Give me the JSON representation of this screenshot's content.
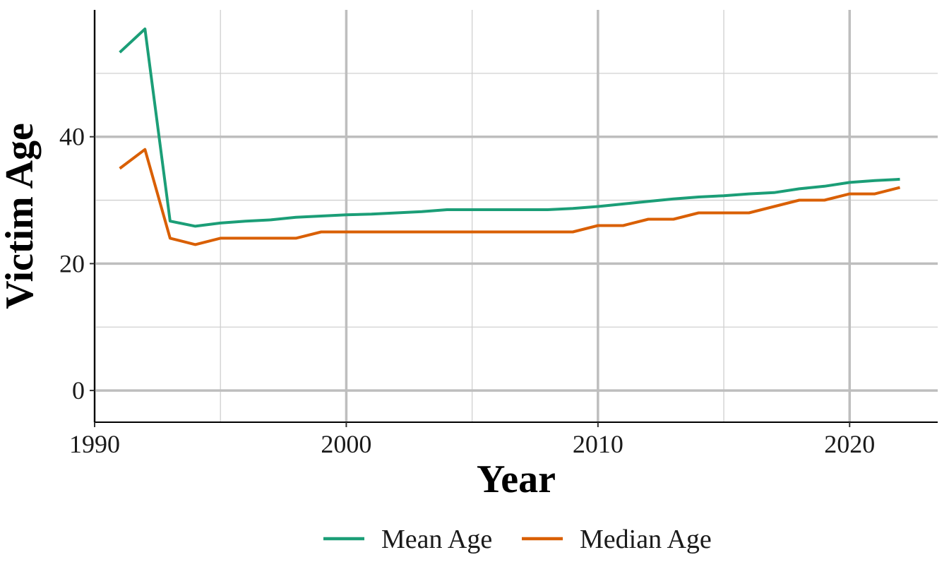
{
  "chart_data": {
    "type": "line",
    "xlabel": "Year",
    "ylabel": "Victim Age",
    "xlim": [
      1990,
      2023.5
    ],
    "ylim": [
      -5,
      60
    ],
    "x_ticks": [
      1990,
      2000,
      2010,
      2020
    ],
    "y_ticks": [
      0,
      20,
      40
    ],
    "x_tick_labels": [
      "1990",
      "2000",
      "2010",
      "2020"
    ],
    "y_tick_labels": [
      "0",
      "20",
      "40"
    ],
    "grid": true,
    "legend_position": "bottom",
    "x": [
      1991,
      1992,
      1993,
      1994,
      1995,
      1996,
      1997,
      1998,
      1999,
      2000,
      2001,
      2002,
      2003,
      2004,
      2005,
      2006,
      2007,
      2008,
      2009,
      2010,
      2011,
      2012,
      2013,
      2014,
      2015,
      2016,
      2017,
      2018,
      2019,
      2020,
      2021,
      2022
    ],
    "series": [
      {
        "name": "Mean Age",
        "color": "#1b9e77",
        "values": [
          53.3,
          57.0,
          26.7,
          25.9,
          26.4,
          26.7,
          26.9,
          27.3,
          27.5,
          27.7,
          27.8,
          28.0,
          28.2,
          28.5,
          28.5,
          28.5,
          28.5,
          28.5,
          28.7,
          29.0,
          29.4,
          29.8,
          30.2,
          30.5,
          30.7,
          31.0,
          31.2,
          31.8,
          32.2,
          32.8,
          33.1,
          33.3
        ]
      },
      {
        "name": "Median Age",
        "color": "#d95f02",
        "values": [
          35,
          38,
          24,
          23,
          24,
          24,
          24,
          24,
          25,
          25,
          25,
          25,
          25,
          25,
          25,
          25,
          25,
          25,
          25,
          26,
          26,
          27,
          27,
          28,
          28,
          28,
          29,
          30,
          30,
          31,
          31,
          32
        ]
      }
    ]
  }
}
